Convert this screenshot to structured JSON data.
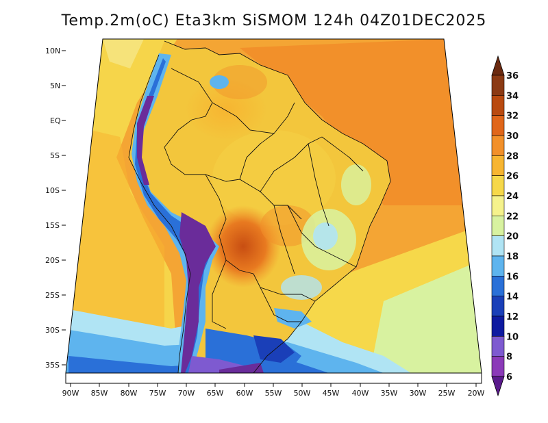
{
  "title": "Temp.2m(oC) Eta3km SiSMOM 124h 04Z01DEC2025",
  "map": {
    "lat_labels": [
      "10N",
      "5N",
      "EQ",
      "5S",
      "10S",
      "15S",
      "20S",
      "25S",
      "30S",
      "35S"
    ],
    "lon_labels": [
      "90W",
      "85W",
      "80W",
      "75W",
      "70W",
      "65W",
      "60W",
      "55W",
      "50W",
      "45W",
      "40W",
      "35W",
      "30W",
      "25W",
      "20W"
    ]
  },
  "colorbar": {
    "labels": [
      "36",
      "34",
      "32",
      "30",
      "28",
      "26",
      "24",
      "22",
      "20",
      "18",
      "16",
      "14",
      "12",
      "10",
      "8",
      "6"
    ],
    "colors": [
      "#6b2a10",
      "#8b3a14",
      "#b94a10",
      "#e0661a",
      "#f2902a",
      "#f7b531",
      "#f6d84a",
      "#f5f28c",
      "#d8f2a0",
      "#b0e4f4",
      "#5eb4ee",
      "#2a70d8",
      "#1a3fb8",
      "#0e1aa0",
      "#7e5ad0",
      "#8b3ab8",
      "#5a1a8c"
    ]
  },
  "colors": {
    "ocean_warm": "#f4a534",
    "ocean_mid": "#f6d54a",
    "land_base": "#f3c63c",
    "andes": "#6a2c9a",
    "cold_south": "#2a5ad8"
  }
}
